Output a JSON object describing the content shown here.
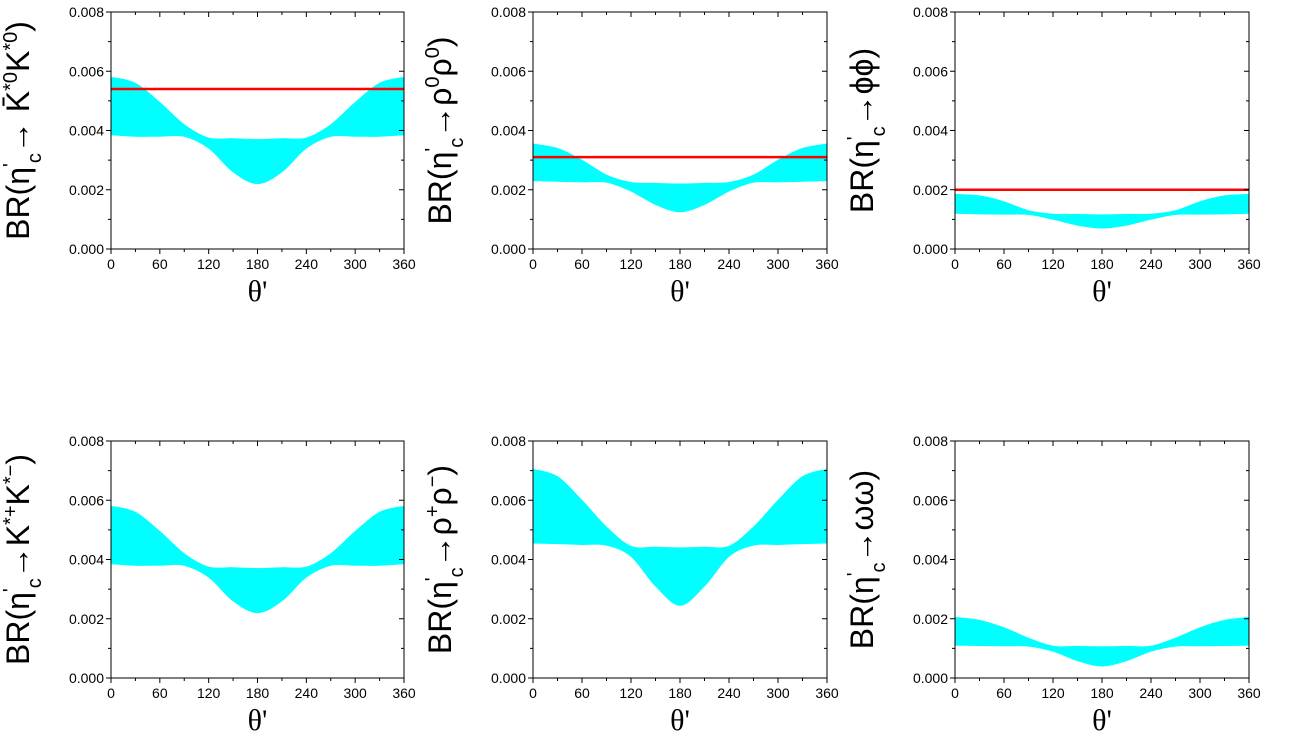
{
  "colors": {
    "band": "#00ffff",
    "line": "#ff0000",
    "axis": "#000000"
  },
  "chart_data": [
    {
      "type": "area",
      "panel": "top-left",
      "ylabel_parts": [
        {
          "t": "BR(η"
        },
        {
          "t": "'",
          "sup": true
        },
        {
          "t": "c",
          "sub": true
        },
        {
          "t": "→ "
        },
        {
          "t": "K̄",
          "bar": true
        },
        {
          "t": "*0",
          "sup": true
        },
        {
          "t": "K"
        },
        {
          "t": "*0",
          "sup": true
        },
        {
          "t": ")"
        }
      ],
      "xlabel": "θ'",
      "xlim": [
        0,
        360
      ],
      "ylim": [
        0,
        0.008
      ],
      "xticks": [
        "0",
        "60",
        "120",
        "180",
        "240",
        "300",
        "360"
      ],
      "yticks": [
        "0.000",
        "0.002",
        "0.004",
        "0.006",
        "0.008"
      ],
      "band": {
        "x": [
          0,
          30,
          60,
          90,
          120,
          150,
          180,
          210,
          240,
          270,
          300,
          330,
          360
        ],
        "upper": [
          0.0058,
          0.0056,
          0.00495,
          0.0042,
          0.00375,
          0.00373,
          0.0037,
          0.00373,
          0.00375,
          0.0042,
          0.00495,
          0.0056,
          0.0058
        ],
        "lower": [
          0.00385,
          0.0038,
          0.0038,
          0.0038,
          0.0034,
          0.0026,
          0.0022,
          0.0026,
          0.0034,
          0.0038,
          0.0038,
          0.0038,
          0.00385
        ]
      },
      "hline": 0.0054
    },
    {
      "type": "area",
      "panel": "top-middle",
      "ylabel_parts": [
        {
          "t": "BR(η"
        },
        {
          "t": "'",
          "sup": true
        },
        {
          "t": "c",
          "sub": true
        },
        {
          "t": "→ρ"
        },
        {
          "t": "0",
          "sup": true
        },
        {
          "t": "ρ"
        },
        {
          "t": "0",
          "sup": true
        },
        {
          "t": ")"
        }
      ],
      "xlabel": "θ'",
      "xlim": [
        0,
        360
      ],
      "ylim": [
        0,
        0.008
      ],
      "xticks": [
        "0",
        "60",
        "120",
        "180",
        "240",
        "300",
        "360"
      ],
      "yticks": [
        "0.000",
        "0.002",
        "0.004",
        "0.006",
        "0.008"
      ],
      "band": {
        "x": [
          0,
          30,
          60,
          90,
          120,
          150,
          180,
          210,
          240,
          270,
          300,
          330,
          360
        ],
        "upper": [
          0.00355,
          0.0034,
          0.003,
          0.0025,
          0.00225,
          0.00222,
          0.0022,
          0.00222,
          0.00225,
          0.0025,
          0.003,
          0.0034,
          0.00355
        ],
        "lower": [
          0.0023,
          0.00228,
          0.00226,
          0.00225,
          0.00195,
          0.0015,
          0.00125,
          0.0015,
          0.00195,
          0.00225,
          0.00226,
          0.00228,
          0.0023
        ]
      },
      "hline": 0.0031
    },
    {
      "type": "area",
      "panel": "top-right",
      "ylabel_parts": [
        {
          "t": "BR(η"
        },
        {
          "t": "'",
          "sup": true
        },
        {
          "t": "c",
          "sub": true
        },
        {
          "t": "→ϕϕ)"
        }
      ],
      "xlabel": "θ'",
      "xlim": [
        0,
        360
      ],
      "ylim": [
        0,
        0.008
      ],
      "xticks": [
        "0",
        "60",
        "120",
        "180",
        "240",
        "300",
        "360"
      ],
      "yticks": [
        "0.000",
        "0.002",
        "0.004",
        "0.006",
        "0.008"
      ],
      "band": {
        "x": [
          0,
          30,
          60,
          90,
          120,
          150,
          180,
          210,
          240,
          270,
          300,
          330,
          360
        ],
        "upper": [
          0.00185,
          0.0018,
          0.0016,
          0.0013,
          0.00118,
          0.00117,
          0.00116,
          0.00117,
          0.00118,
          0.0013,
          0.0016,
          0.0018,
          0.00185
        ],
        "lower": [
          0.0012,
          0.00118,
          0.00117,
          0.00116,
          0.001,
          0.0008,
          0.0007,
          0.0008,
          0.001,
          0.00116,
          0.00117,
          0.00118,
          0.0012
        ]
      },
      "hline": 0.002
    },
    {
      "type": "area",
      "panel": "bottom-left",
      "ylabel_parts": [
        {
          "t": "BR(η"
        },
        {
          "t": "'",
          "sup": true
        },
        {
          "t": "c",
          "sub": true
        },
        {
          "t": "→K"
        },
        {
          "t": "*+",
          "sup": true
        },
        {
          "t": "K"
        },
        {
          "t": "*−",
          "sup": true
        },
        {
          "t": ")"
        }
      ],
      "xlabel": "θ'",
      "xlim": [
        0,
        360
      ],
      "ylim": [
        0,
        0.008
      ],
      "xticks": [
        "0",
        "60",
        "120",
        "180",
        "240",
        "300",
        "360"
      ],
      "yticks": [
        "0.000",
        "0.002",
        "0.004",
        "0.006",
        "0.008"
      ],
      "band": {
        "x": [
          0,
          30,
          60,
          90,
          120,
          150,
          180,
          210,
          240,
          270,
          300,
          330,
          360
        ],
        "upper": [
          0.0058,
          0.0056,
          0.00495,
          0.0042,
          0.00375,
          0.00373,
          0.0037,
          0.00373,
          0.00375,
          0.0042,
          0.00495,
          0.0056,
          0.0058
        ],
        "lower": [
          0.00385,
          0.0038,
          0.0038,
          0.0038,
          0.0034,
          0.0026,
          0.0022,
          0.0026,
          0.0034,
          0.0038,
          0.0038,
          0.0038,
          0.00385
        ]
      }
    },
    {
      "type": "area",
      "panel": "bottom-middle",
      "ylabel_parts": [
        {
          "t": "BR(η"
        },
        {
          "t": "'",
          "sup": true
        },
        {
          "t": "c",
          "sub": true
        },
        {
          "t": "→ρ"
        },
        {
          "t": "+",
          "sup": true
        },
        {
          "t": "ρ"
        },
        {
          "t": "−",
          "sup": true
        },
        {
          "t": ")"
        }
      ],
      "xlabel": "θ'",
      "xlim": [
        0,
        360
      ],
      "ylim": [
        0,
        0.008
      ],
      "xticks": [
        "0",
        "60",
        "120",
        "180",
        "240",
        "300",
        "360"
      ],
      "yticks": [
        "0.000",
        "0.002",
        "0.004",
        "0.006",
        "0.008"
      ],
      "band": {
        "x": [
          0,
          30,
          60,
          90,
          120,
          150,
          180,
          210,
          240,
          270,
          300,
          330,
          360
        ],
        "upper": [
          0.00705,
          0.0068,
          0.006,
          0.0051,
          0.00445,
          0.00442,
          0.0044,
          0.00442,
          0.00445,
          0.0051,
          0.006,
          0.0068,
          0.00705
        ],
        "lower": [
          0.00455,
          0.00453,
          0.0045,
          0.00448,
          0.0041,
          0.0031,
          0.00245,
          0.0031,
          0.0041,
          0.00448,
          0.0045,
          0.00453,
          0.00455
        ]
      }
    },
    {
      "type": "area",
      "panel": "bottom-right",
      "ylabel_parts": [
        {
          "t": "BR(η"
        },
        {
          "t": "'",
          "sup": true
        },
        {
          "t": "c",
          "sub": true
        },
        {
          "t": "→ωω)"
        }
      ],
      "xlabel": "θ'",
      "xlim": [
        0,
        360
      ],
      "ylim": [
        0,
        0.008
      ],
      "xticks": [
        "0",
        "60",
        "120",
        "180",
        "240",
        "300",
        "360"
      ],
      "yticks": [
        "0.000",
        "0.002",
        "0.004",
        "0.006",
        "0.008"
      ],
      "band": {
        "x": [
          0,
          30,
          60,
          90,
          120,
          150,
          180,
          210,
          240,
          270,
          300,
          330,
          360
        ],
        "upper": [
          0.00205,
          0.00195,
          0.0017,
          0.00135,
          0.00108,
          0.00107,
          0.00106,
          0.00107,
          0.00108,
          0.00135,
          0.0017,
          0.00195,
          0.00205
        ],
        "lower": [
          0.0011,
          0.00109,
          0.00108,
          0.00107,
          0.0009,
          0.00058,
          0.0004,
          0.00058,
          0.0009,
          0.00107,
          0.00108,
          0.00109,
          0.0011
        ]
      }
    }
  ]
}
